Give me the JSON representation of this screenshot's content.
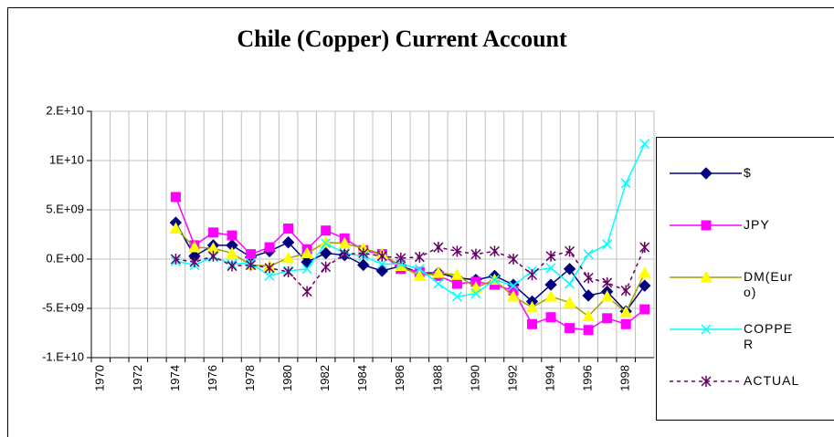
{
  "chart_data": {
    "type": "line",
    "title": "Chile (Copper) Current Account",
    "categories": [
      "1970",
      null,
      "1972",
      null,
      "1974",
      null,
      "1976",
      null,
      "1978",
      null,
      "1980",
      null,
      "1982",
      null,
      "1984",
      null,
      "1986",
      null,
      "1988",
      null,
      "1990",
      null,
      "1992",
      null,
      "1994",
      null,
      "1996",
      null,
      "1998",
      null
    ],
    "series": [
      {
        "name": "$",
        "color": "#000080",
        "marker": "diamond",
        "dash": false,
        "values": [
          null,
          null,
          null,
          null,
          3700000000.0,
          300000000.0,
          1400000000.0,
          1400000000.0,
          200000000.0,
          800000000.0,
          1700000000.0,
          -300000000.0,
          600000000.0,
          400000000.0,
          -600000000.0,
          -1200000000.0,
          -700000000.0,
          -1400000000.0,
          -1400000000.0,
          -1900000000.0,
          -2100000000.0,
          -1700000000.0,
          -2600000000.0,
          -4300000000.0,
          -2600000000.0,
          -1000000000.0,
          -3700000000.0,
          -3300000000.0,
          -5300000000.0,
          -2700000000.0
        ]
      },
      {
        "name": "JPY",
        "color": "#ff00ff",
        "marker": "square",
        "dash": false,
        "values": [
          null,
          null,
          null,
          null,
          6300000000.0,
          1400000000.0,
          2700000000.0,
          2400000000.0,
          500000000.0,
          1200000000.0,
          3100000000.0,
          1000000000.0,
          2900000000.0,
          2100000000.0,
          900000000.0,
          500000000.0,
          -1000000000.0,
          -1300000000.0,
          -1700000000.0,
          -2500000000.0,
          -2300000000.0,
          -2600000000.0,
          -3200000000.0,
          -6600000000.0,
          -5900000000.0,
          -7000000000.0,
          -7200000000.0,
          -6000000000.0,
          -6600000000.0,
          -5100000000.0
        ]
      },
      {
        "name": "DM(Euro)",
        "color": "#ffff00",
        "line_color": "#a0a000",
        "marker": "triangle",
        "dash": false,
        "values": [
          null,
          null,
          null,
          null,
          3100000000.0,
          1200000000.0,
          1100000000.0,
          600000000.0,
          -600000000.0,
          -700000000.0,
          100000000.0,
          600000000.0,
          1700000000.0,
          1600000000.0,
          1100000000.0,
          500000000.0,
          -700000000.0,
          -1700000000.0,
          -1400000000.0,
          -1600000000.0,
          -2900000000.0,
          -2100000000.0,
          -3800000000.0,
          -4900000000.0,
          -3800000000.0,
          -4400000000.0,
          -5800000000.0,
          -3800000000.0,
          -5400000000.0,
          -1400000000.0
        ]
      },
      {
        "name": "COPPER",
        "color": "#00ffff",
        "marker": "x",
        "dash": false,
        "values": [
          null,
          null,
          null,
          null,
          -200000000.0,
          -600000000.0,
          200000000.0,
          -500000000.0,
          -400000000.0,
          -1700000000.0,
          -1200000000.0,
          -1000000000.0,
          1600000000.0,
          600000000.0,
          300000000.0,
          -500000000.0,
          -500000000.0,
          -1000000000.0,
          -2500000000.0,
          -3800000000.0,
          -3500000000.0,
          -2100000000.0,
          -2700000000.0,
          -1200000000.0,
          -900000000.0,
          -2500000000.0,
          500000000.0,
          1500000000.0,
          7700000000.0,
          11700000000.0
        ]
      },
      {
        "name": "ACTUAL",
        "color": "#660066",
        "marker": "asterisk",
        "dash": true,
        "values": [
          null,
          null,
          null,
          null,
          0,
          -300000000.0,
          300000000.0,
          -700000000.0,
          -600000000.0,
          -900000000.0,
          -1300000000.0,
          -3300000000.0,
          -800000000.0,
          500000000.0,
          600000000.0,
          300000000.0,
          100000000.0,
          200000000.0,
          1200000000.0,
          800000000.0,
          500000000.0,
          800000000.0,
          0,
          -1600000000.0,
          300000000.0,
          800000000.0,
          -1900000000.0,
          -2400000000.0,
          -3200000000.0,
          1200000000.0
        ]
      }
    ],
    "ylim": [
      -10000000000.0,
      15000000000.0
    ],
    "yticks": [
      {
        "value": 15000000000.0,
        "label": "2.E+10"
      },
      {
        "value": 10000000000.0,
        "label": "1E+10"
      },
      {
        "value": 5000000000.0,
        "label": "5.E+09"
      },
      {
        "value": 0,
        "label": "0.E+00"
      },
      {
        "value": -5000000000.0,
        "label": "-5.E+09"
      },
      {
        "value": -10000000000.0,
        "label": "-1.E+10"
      }
    ],
    "grid": true,
    "legend": "right"
  }
}
